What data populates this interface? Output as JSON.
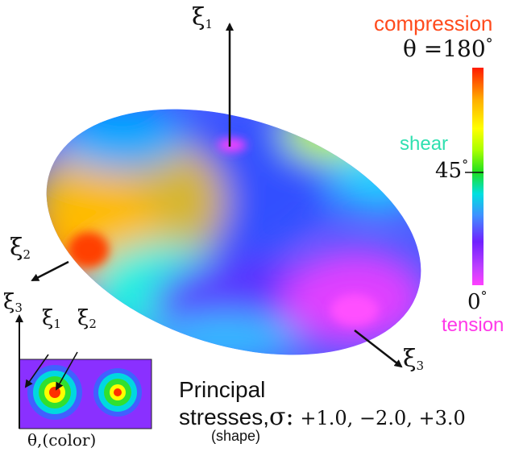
{
  "labels": {
    "xi": "ξ",
    "sub1": "1",
    "sub2": "2",
    "sub3": "3",
    "compression": "compression",
    "shear": "shear",
    "tension": "tension",
    "theta_eq": "θ =",
    "tick_180": "180",
    "tick_45": "45",
    "tick_0": "0",
    "deg": "°",
    "principal": "Principal",
    "stresses": "stresses,",
    "sigma": "σ:",
    "values": "+1.0, −2.0, +3.0",
    "shape": "(shape)",
    "theta_color": "θ,(color)"
  },
  "colors": {
    "compression": "#ff4a1c",
    "shear": "#2fe0b0",
    "tension": "#ff38e8",
    "arrow": "#111111"
  },
  "colorbar_stops": [
    "#ff1a00",
    "#ffb000",
    "#ffff00",
    "#a8ff00",
    "#20e020",
    "#00e0e0",
    "#4080ff",
    "#7020ff",
    "#c040ff",
    "#ff40ff"
  ]
}
